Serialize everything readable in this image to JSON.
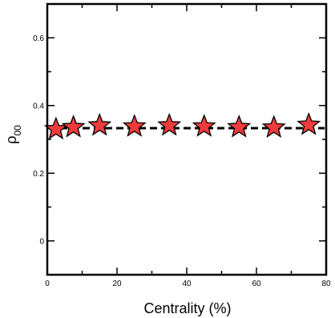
{
  "chart_data": {
    "type": "scatter",
    "xlabel": "Centrality (%)",
    "ylabel": "ρ",
    "ylabel_subscript": "00",
    "xlim": [
      0,
      80
    ],
    "ylim": [
      -0.1,
      0.7
    ],
    "x_ticks": [
      0,
      20,
      40,
      60,
      80
    ],
    "x_tick_labels": [
      "0",
      "20",
      "40",
      "60",
      "80"
    ],
    "y_ticks": [
      0,
      0.2,
      0.4,
      0.6
    ],
    "y_tick_labels": [
      "0",
      "0.2",
      "0.4",
      "0.6"
    ],
    "grid": false,
    "marker": "star",
    "marker_color": "#ee3b3b",
    "reference_line": {
      "y": 0.333,
      "style": "dashed",
      "color": "#000000"
    },
    "series": [
      {
        "x": [
          2.5,
          7.5,
          15,
          25,
          35,
          45,
          55,
          65,
          75
        ],
        "values": [
          0.33,
          0.336,
          0.341,
          0.338,
          0.341,
          0.338,
          0.336,
          0.335,
          0.343
        ]
      }
    ]
  }
}
